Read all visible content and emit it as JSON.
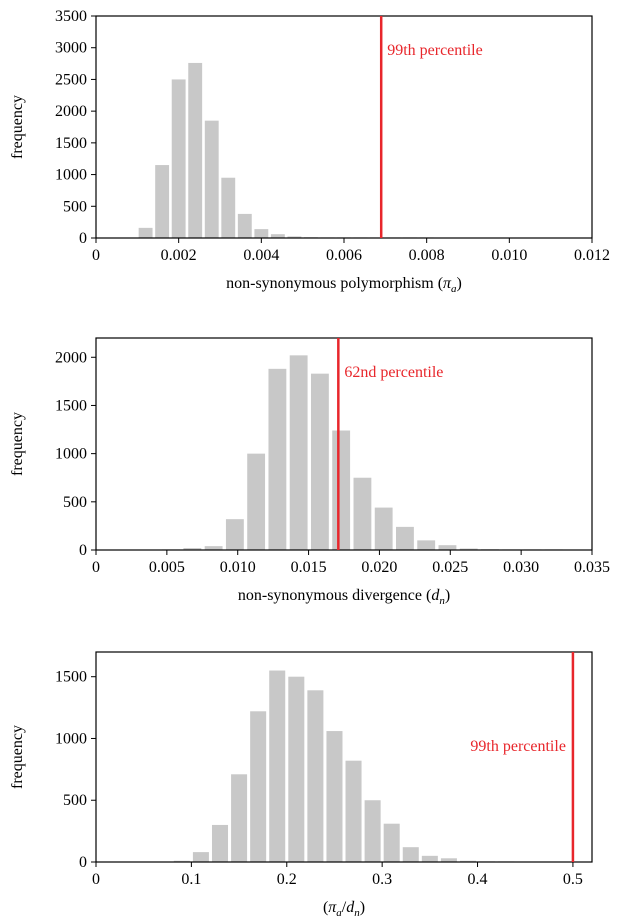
{
  "chart_data": [
    {
      "type": "bar",
      "xlabel": "non-synonymous polymorphism (",
      "xlabel_symbol": "π",
      "xlabel_sub": "a",
      "xlabel_close": ")",
      "ylabel": "frequency",
      "xlim": [
        0,
        0.012
      ],
      "ylim": [
        0,
        3500
      ],
      "x_ticks": [
        "0",
        "0.002",
        "0.004",
        "0.006",
        "0.008",
        "0.010",
        "0.012"
      ],
      "x_tick_values": [
        0,
        0.002,
        0.004,
        0.006,
        0.008,
        0.01,
        0.012
      ],
      "y_ticks": [
        "0",
        "500",
        "1000",
        "1500",
        "2000",
        "2500",
        "3000",
        "3500"
      ],
      "y_tick_values": [
        0,
        500,
        1000,
        1500,
        2000,
        2500,
        3000,
        3500
      ],
      "bin_width": 0.0004,
      "bin_centers": [
        0.0012,
        0.0016,
        0.002,
        0.0024,
        0.0028,
        0.0032,
        0.0036,
        0.004,
        0.0044,
        0.0048,
        0.0052,
        0.0056,
        0.006,
        0.0064,
        0.0068,
        0.0072,
        0.0076,
        0.008
      ],
      "values": [
        160,
        1150,
        2500,
        2760,
        1850,
        950,
        380,
        140,
        60,
        25,
        12,
        6,
        4,
        3,
        2,
        2,
        1,
        1
      ],
      "bar_color": "#c8c8c8",
      "marker": {
        "x": 0.0069,
        "label": "99th percentile",
        "color": "#e8262b",
        "label_side": "right"
      }
    },
    {
      "type": "bar",
      "xlabel": "non-synonymous divergence (",
      "xlabel_symbol": "d",
      "xlabel_sub": "n",
      "xlabel_close": ")",
      "ylabel": "frequency",
      "xlim": [
        0,
        0.035
      ],
      "ylim": [
        0,
        2200
      ],
      "x_ticks": [
        "0",
        "0.005",
        "0.010",
        "0.015",
        "0.020",
        "0.025",
        "0.030",
        "0.035"
      ],
      "x_tick_values": [
        0,
        0.005,
        0.01,
        0.015,
        0.02,
        0.025,
        0.03,
        0.035
      ],
      "y_ticks": [
        "0",
        "500",
        "1000",
        "1500",
        "2000"
      ],
      "y_tick_values": [
        0,
        500,
        1000,
        1500,
        2000
      ],
      "bin_width": 0.0015,
      "bin_centers": [
        0.0053,
        0.0068,
        0.0083,
        0.0098,
        0.0113,
        0.0128,
        0.0143,
        0.0158,
        0.0173,
        0.0188,
        0.0203,
        0.0218,
        0.0233,
        0.0248,
        0.0263,
        0.0278,
        0.0293,
        0.0308,
        0.0323
      ],
      "values": [
        5,
        20,
        40,
        320,
        1000,
        1880,
        2020,
        1830,
        1240,
        750,
        440,
        240,
        100,
        50,
        15,
        8,
        5,
        5,
        5
      ],
      "bar_color": "#c8c8c8",
      "marker": {
        "x": 0.0171,
        "label": "62nd percentile",
        "color": "#e8262b",
        "label_side": "right"
      }
    },
    {
      "type": "bar",
      "xlabel": "(",
      "xlabel_symbol": "π",
      "xlabel_sub": "a",
      "xlabel_mid": "/",
      "xlabel_symbol2": "d",
      "xlabel_sub2": "n",
      "xlabel_close": ")",
      "ylabel": "frequency",
      "xlim": [
        0,
        0.52
      ],
      "ylim": [
        0,
        1700
      ],
      "x_ticks": [
        "0",
        "0.1",
        "0.2",
        "0.3",
        "0.4",
        "0.5"
      ],
      "x_tick_values": [
        0,
        0.1,
        0.2,
        0.3,
        0.4,
        0.5
      ],
      "y_ticks": [
        "0",
        "500",
        "1000",
        "1500"
      ],
      "y_tick_values": [
        0,
        500,
        1000,
        1500
      ],
      "bin_width": 0.02,
      "bin_centers": [
        0.09,
        0.11,
        0.13,
        0.15,
        0.17,
        0.19,
        0.21,
        0.23,
        0.25,
        0.27,
        0.29,
        0.31,
        0.33,
        0.35,
        0.37,
        0.39,
        0.41,
        0.43
      ],
      "values": [
        10,
        80,
        300,
        710,
        1220,
        1550,
        1500,
        1390,
        1060,
        820,
        500,
        310,
        120,
        50,
        30,
        10,
        5,
        3
      ],
      "bar_color": "#c8c8c8",
      "marker": {
        "x": 0.5,
        "label": "99th percentile",
        "color": "#e8262b",
        "label_side": "left"
      }
    }
  ]
}
